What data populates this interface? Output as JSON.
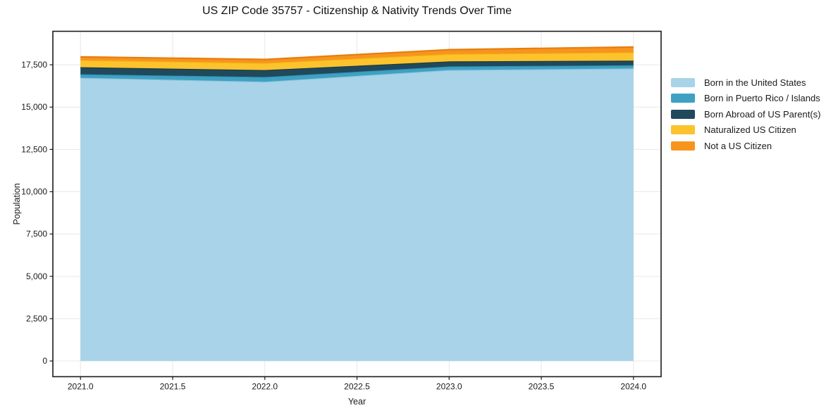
{
  "figure": {
    "background_color": "#ffffff",
    "border_color": "#1a1a1a",
    "grid_color": "#e7e7e7"
  },
  "chart_data": {
    "type": "area",
    "stacked": true,
    "title": "US ZIP Code 35757 - Citizenship & Nativity Trends Over Time",
    "xlabel": "Year",
    "ylabel": "Population",
    "x": [
      2021,
      2022,
      2023,
      2024
    ],
    "series": [
      {
        "name": "Born in the United States",
        "values": [
          16730,
          16500,
          17190,
          17285
        ],
        "color": "#a8d3e8",
        "edge_color": "#8fc4de"
      },
      {
        "name": "Born in Puerto Rico / Islands",
        "values": [
          210,
          275,
          210,
          185
        ],
        "color": "#3fa1c2",
        "edge_color": "#2d92b5"
      },
      {
        "name": "Born Abroad of US Parent(s)",
        "values": [
          415,
          415,
          300,
          275
        ],
        "color": "#20495c",
        "edge_color": "#163847"
      },
      {
        "name": "Naturalized US Citizen",
        "values": [
          425,
          415,
          435,
          485
        ],
        "color": "#fcc32d",
        "edge_color": "#f4b312"
      },
      {
        "name": "Not a US Citizen",
        "values": [
          190,
          210,
          260,
          320
        ],
        "color": "#f7941e",
        "edge_color": "#e67e0e"
      }
    ],
    "xticks": {
      "values": [
        2021.0,
        2021.5,
        2022.0,
        2022.5,
        2023.0,
        2023.5,
        2024.0
      ],
      "labels": [
        "2021.0",
        "2021.5",
        "2022.0",
        "2022.5",
        "2023.0",
        "2023.5",
        "2024.0"
      ]
    },
    "yticks": {
      "values": [
        0,
        2500,
        5000,
        7500,
        10000,
        12500,
        15000,
        17500
      ],
      "labels": [
        "0",
        "2,500",
        "5,000",
        "7,500",
        "10,000",
        "12,500",
        "15,000",
        "17,500"
      ]
    },
    "xlim": [
      2020.85,
      2024.15
    ],
    "ylim": [
      -928,
      19478
    ],
    "grid": true,
    "legend_position": "right"
  }
}
